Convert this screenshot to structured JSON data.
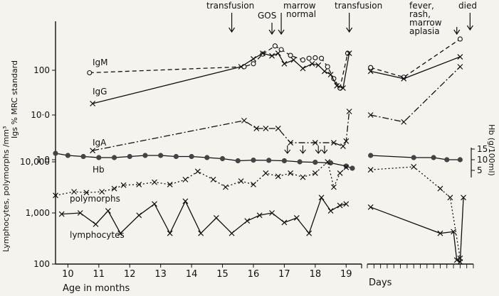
{
  "chart_data": {
    "type": "line",
    "x_axis": {
      "label": "Age in months",
      "ticks": [
        "10",
        "11",
        "12",
        "13",
        "14",
        "15",
        "16",
        "17",
        "18",
        "19"
      ],
      "xlim": [
        9.6,
        19.5
      ],
      "days_label": "Days"
    },
    "y_axis_upper": {
      "label": "Igs % MRC standard",
      "scale": "log",
      "ticks": [
        "1·0",
        "10·0",
        "100"
      ],
      "ylim": [
        1,
        1000
      ]
    },
    "y_axis_lower": {
      "label": "Lymphocytes, polymorphs /mm³",
      "scale": "log",
      "ticks": [
        "100",
        "1,000",
        "10,000"
      ],
      "ylim": [
        100,
        10000
      ]
    },
    "y_axis_right": {
      "label": "Hb (g/100ml)",
      "ticks": [
        "15",
        "10",
        "5"
      ]
    },
    "series": [
      {
        "name": "IgM",
        "style": "dashed",
        "marker": "o",
        "x": [
          10.7,
          15.7,
          16.0,
          16.3,
          16.7,
          16.9,
          17.2,
          17.6,
          17.8,
          18.0,
          18.2,
          18.4,
          18.6,
          18.8,
          19.05
        ],
        "y": [
          88,
          120,
          140,
          230,
          350,
          290,
          215,
          170,
          185,
          190,
          185,
          120,
          65,
          40,
          240
        ],
        "x_post": [
          1,
          11,
          28
        ],
        "y_post": [
          115,
          70,
          500
        ]
      },
      {
        "name": "IgG",
        "style": "solid",
        "marker": "x",
        "x": [
          10.8,
          15.6,
          16.0,
          16.3,
          16.6,
          16.8,
          17.0,
          17.3,
          17.6,
          17.9,
          18.1,
          18.3,
          18.5,
          18.7,
          18.9,
          19.1
        ],
        "y": [
          18,
          120,
          180,
          240,
          210,
          240,
          140,
          170,
          110,
          140,
          130,
          95,
          80,
          45,
          40,
          240
        ],
        "x_post": [
          1,
          11,
          28
        ],
        "y_post": [
          95,
          65,
          200
        ]
      },
      {
        "name": "IgA",
        "style": "dashdot",
        "marker": "x",
        "x": [
          10.8,
          15.7,
          16.1,
          16.4,
          16.8,
          17.2,
          18.0,
          18.6,
          18.9,
          19.0,
          19.1
        ],
        "y": [
          1.6,
          7.5,
          5,
          5,
          5,
          2.4,
          2.4,
          2.4,
          2,
          2.6,
          12
        ],
        "x_post": [
          1,
          11,
          28
        ],
        "y_post": [
          10,
          7,
          120
        ]
      },
      {
        "name": "Hb",
        "style": "solid",
        "marker": "dot",
        "x": [
          9.6,
          10.0,
          10.5,
          11.0,
          11.5,
          12.0,
          12.5,
          13.0,
          13.5,
          14.0,
          14.5,
          15.0,
          15.5,
          16.0,
          16.5,
          17.0,
          17.5,
          18.0,
          18.5,
          19.0,
          19.2
        ],
        "y": [
          13,
          12,
          11.5,
          11,
          11,
          11.5,
          12,
          12,
          11.5,
          11.5,
          11,
          10.5,
          9.5,
          9.8,
          9.7,
          9.5,
          9,
          8.8,
          8.5,
          7,
          6
        ],
        "x_post": [
          1,
          14,
          20,
          24,
          28
        ],
        "y_post": [
          12,
          11,
          11,
          10,
          10
        ]
      },
      {
        "name": "polymorphs",
        "style": "dotted",
        "marker": "x",
        "x": [
          9.6,
          10.2,
          10.6,
          11.1,
          11.5,
          11.8,
          12.3,
          12.8,
          13.3,
          13.8,
          14.2,
          14.7,
          15.1,
          15.6,
          16.0,
          16.4,
          16.8,
          17.2,
          17.6,
          18.0,
          18.4,
          18.6,
          18.8,
          19.0
        ],
        "y": [
          2200,
          2600,
          2500,
          2600,
          3000,
          3500,
          3600,
          4000,
          3600,
          4500,
          6500,
          4500,
          3200,
          4200,
          3600,
          6000,
          5200,
          6000,
          5000,
          6000,
          10000,
          3200,
          6000,
          7800
        ],
        "x_post": [
          1,
          14,
          22,
          25,
          28
        ],
        "y_post": [
          7000,
          8000,
          3000,
          2000,
          130
        ]
      },
      {
        "name": "lymphocytes",
        "style": "solid",
        "marker": "x",
        "x": [
          9.8,
          10.4,
          10.9,
          11.3,
          11.7,
          12.3,
          12.8,
          13.3,
          13.8,
          14.3,
          14.8,
          15.3,
          15.8,
          16.2,
          16.6,
          17.0,
          17.4,
          17.8,
          18.2,
          18.5,
          18.8,
          19.0
        ],
        "y": [
          950,
          1000,
          600,
          1100,
          400,
          900,
          1500,
          400,
          1700,
          400,
          800,
          400,
          700,
          900,
          1000,
          650,
          800,
          400,
          2000,
          1100,
          1400,
          1500
        ],
        "x_post": [
          1,
          22,
          26,
          27,
          28,
          29
        ],
        "y_post": [
          1300,
          400,
          430,
          120,
          110,
          2000
        ]
      }
    ],
    "annotations": [
      {
        "text": "transfusion",
        "x": 15.3,
        "arrow": true
      },
      {
        "text": "GOS",
        "x": 16.6,
        "arrow": true
      },
      {
        "text": "marrow normal",
        "x": 16.9,
        "arrow": true
      },
      {
        "text": "transfusion",
        "x": 19.1,
        "arrow": true
      },
      {
        "text": "fever, rash, marrow aplasia",
        "x_post": 27,
        "arrow": true
      },
      {
        "text": "died",
        "x_post": 31,
        "arrow": true
      }
    ],
    "series_labels": [
      {
        "text": "IgM",
        "series": "IgM"
      },
      {
        "text": "IgG",
        "series": "IgG"
      },
      {
        "text": "IgA",
        "series": "IgA"
      },
      {
        "text": "Hb",
        "series": "Hb"
      },
      {
        "text": "polymorphs",
        "series": "polymorphs"
      },
      {
        "text": "lymphocytes",
        "series": "lymphocytes"
      }
    ]
  }
}
